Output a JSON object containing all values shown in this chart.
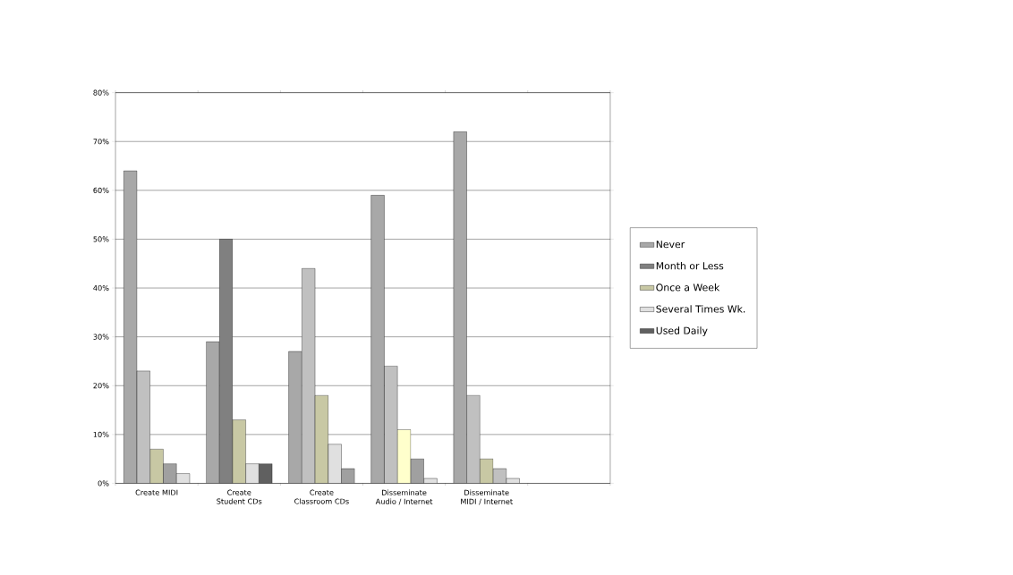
{
  "chart_data": {
    "type": "bar",
    "categories": [
      "Create MIDI",
      "Create Student CDs",
      "Create Classroom CDs",
      "Disseminate Audio / Internet",
      "Disseminate MIDI / Internet",
      null
    ],
    "series": [
      {
        "name": "Never",
        "color": "#a8a8a8",
        "colors": [
          "#a8a8a8",
          "#a8a8a8",
          "#a8a8a8",
          "#a8a8a8",
          "#a8a8a8",
          "#a8a8a8"
        ],
        "values": [
          64,
          29,
          27,
          59,
          72,
          null
        ]
      },
      {
        "name": "Month or Less",
        "color": "#808080",
        "colors": [
          "#c0c0c0",
          "#808080",
          "#c0c0c0",
          "#c0c0c0",
          "#c0c0c0",
          "#c0c0c0"
        ],
        "values": [
          23,
          50,
          44,
          24,
          18,
          null
        ]
      },
      {
        "name": "Once a Week",
        "color": "#c8c8a4",
        "colors": [
          "#c8c8a4",
          "#c8c8a4",
          "#c8c8a4",
          "#ffffcc",
          "#c8c8a4",
          "#c8c8a4"
        ],
        "values": [
          7,
          13,
          18,
          11,
          5,
          null
        ]
      },
      {
        "name": "Several Times Wk.",
        "color": "#e0e0e0",
        "colors": [
          "#a0a0a0",
          "#e0e0e0",
          "#e0e0e0",
          "#a0a0a0",
          "#c0c0c0",
          "#c0c0c0"
        ],
        "values": [
          4,
          4,
          8,
          5,
          3,
          null
        ]
      },
      {
        "name": "Used Daily",
        "color": "#606060",
        "colors": [
          "#e0e0e0",
          "#606060",
          "#a0a0a0",
          "#e0e0e0",
          "#e0e0e0",
          "#e0e0e0"
        ],
        "values": [
          2,
          4,
          3,
          1,
          1,
          null
        ]
      }
    ],
    "ylim": [
      0,
      80
    ],
    "yticks": [
      {
        "value": 0,
        "label": "0%"
      },
      {
        "value": 10,
        "label": "10%"
      },
      {
        "value": 20,
        "label": "20%"
      },
      {
        "value": 30,
        "label": "30%"
      },
      {
        "value": 40,
        "label": "40%"
      },
      {
        "value": 50,
        "label": "50%"
      },
      {
        "value": 60,
        "label": "60%"
      },
      {
        "value": 70,
        "label": "70%"
      },
      {
        "value": 80,
        "label": "80%"
      }
    ],
    "grid": "y",
    "legend": "right"
  }
}
